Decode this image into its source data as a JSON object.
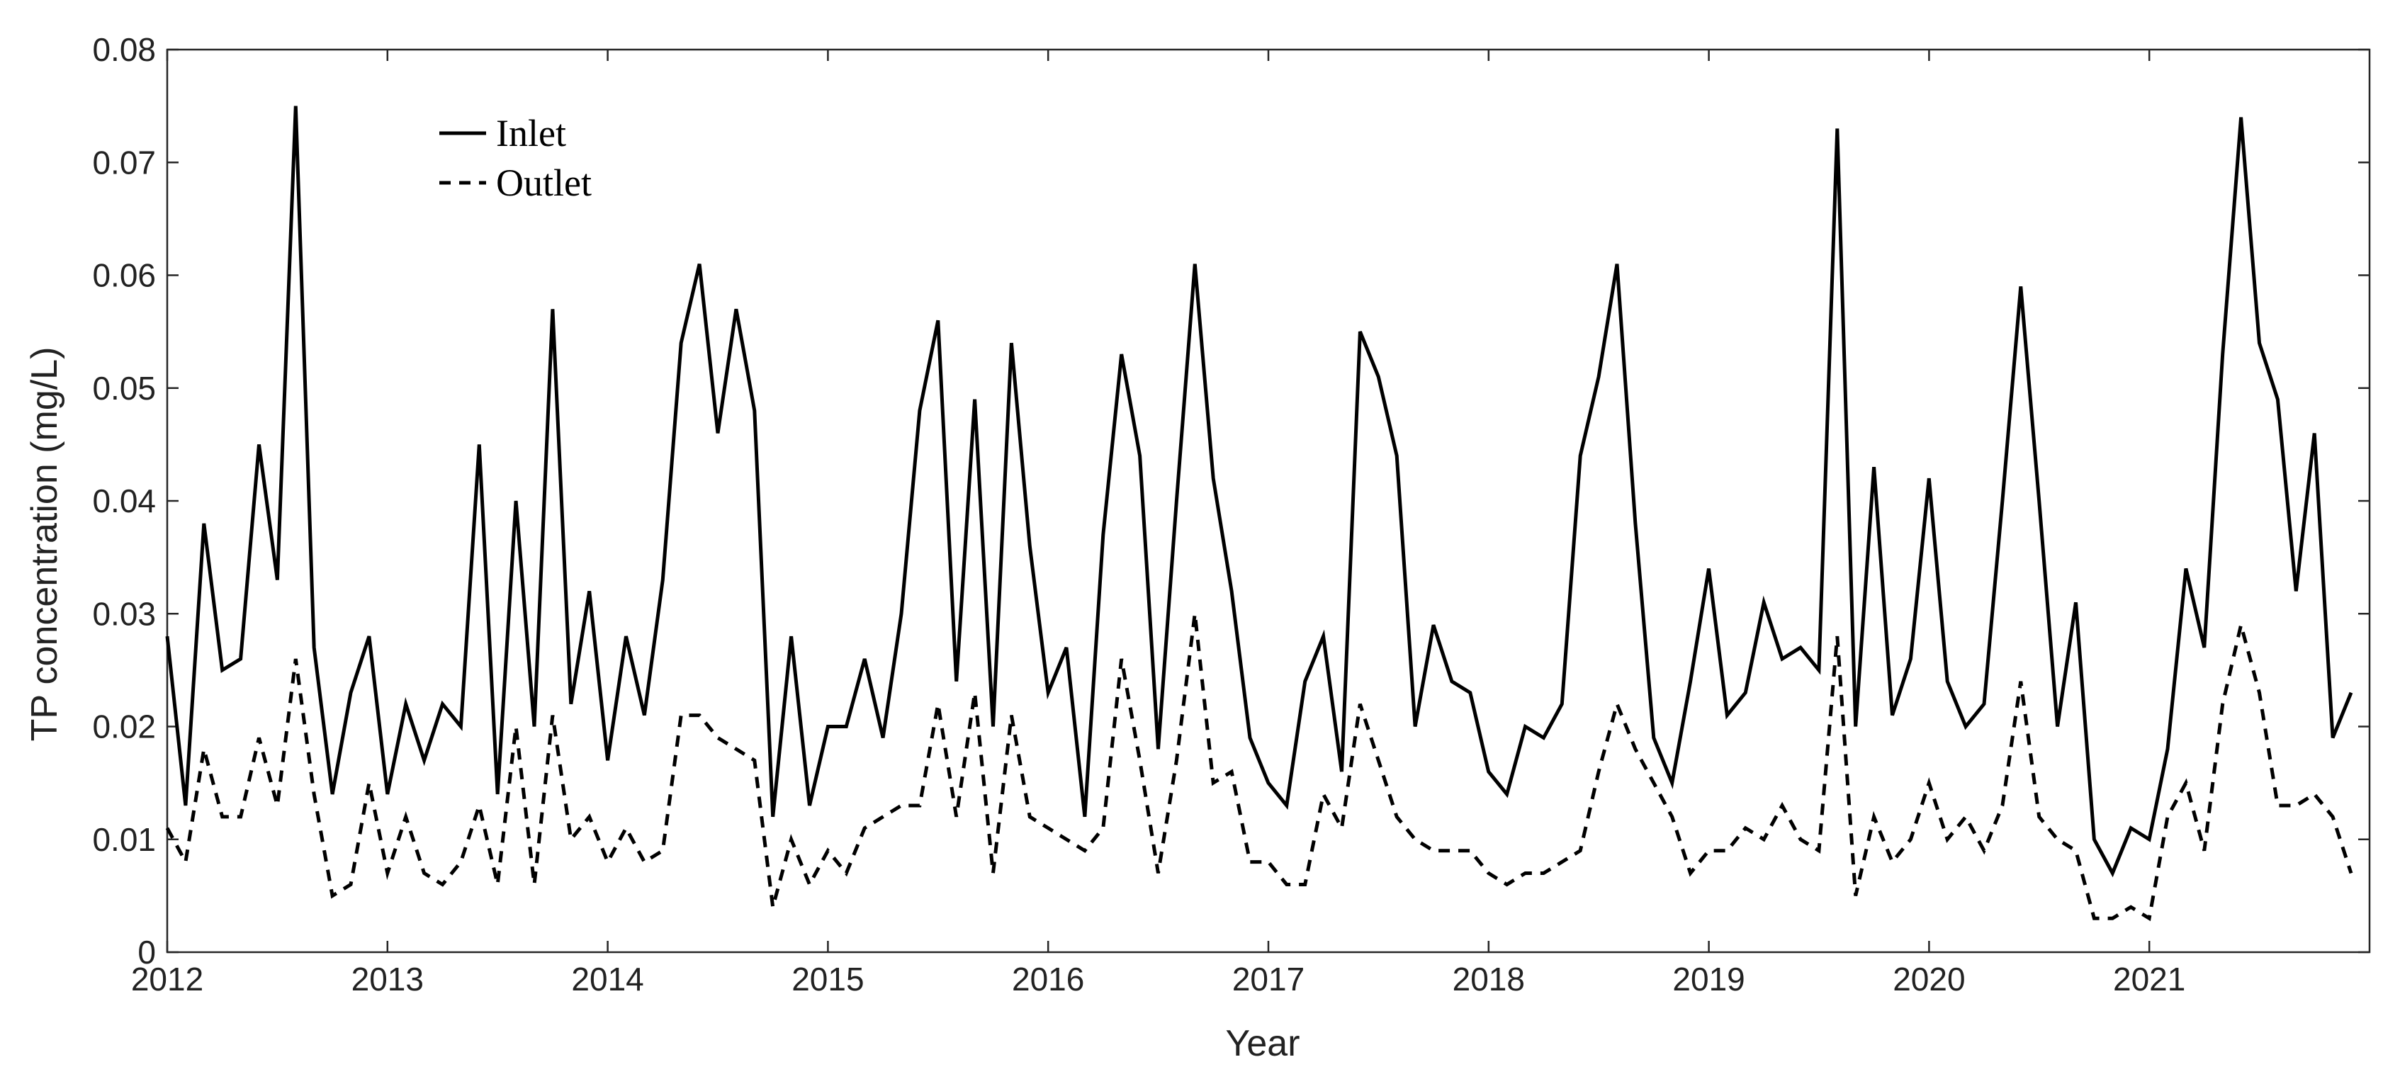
{
  "chart_data": {
    "type": "line",
    "title": "",
    "xlabel": "Year",
    "ylabel": "TP concentration (mg/L)",
    "xlim": [
      2012,
      2022
    ],
    "ylim": [
      0,
      0.08
    ],
    "grid": false,
    "legend_position": "top-left",
    "x_ticks": [
      "2012",
      "2013",
      "2014",
      "2015",
      "2016",
      "2017",
      "2018",
      "2019",
      "2020",
      "2021"
    ],
    "y_ticks": [
      "0",
      "0.01",
      "0.02",
      "0.03",
      "0.04",
      "0.05",
      "0.06",
      "0.07",
      "0.08"
    ],
    "x_step": 0.08333,
    "series": [
      {
        "name": "Inlet",
        "style": "solid",
        "color": "#000000",
        "values": [
          0.028,
          0.013,
          0.038,
          0.025,
          0.026,
          0.045,
          0.033,
          0.075,
          0.027,
          0.014,
          0.023,
          0.028,
          0.014,
          0.022,
          0.017,
          0.022,
          0.02,
          0.045,
          0.014,
          0.04,
          0.02,
          0.057,
          0.022,
          0.032,
          0.017,
          0.028,
          0.021,
          0.033,
          0.054,
          0.061,
          0.046,
          0.057,
          0.048,
          0.012,
          0.028,
          0.013,
          0.02,
          0.02,
          0.026,
          0.019,
          0.03,
          0.048,
          0.056,
          0.024,
          0.049,
          0.02,
          0.054,
          0.036,
          0.023,
          0.027,
          0.012,
          0.037,
          0.053,
          0.044,
          0.018,
          0.04,
          0.061,
          0.042,
          0.032,
          0.019,
          0.015,
          0.013,
          0.024,
          0.028,
          0.016,
          0.055,
          0.051,
          0.044,
          0.02,
          0.029,
          0.024,
          0.023,
          0.016,
          0.014,
          0.02,
          0.019,
          0.022,
          0.044,
          0.051,
          0.061,
          0.038,
          0.019,
          0.015,
          0.024,
          0.034,
          0.021,
          0.023,
          0.031,
          0.026,
          0.027,
          0.025,
          0.073,
          0.02,
          0.043,
          0.021,
          0.026,
          0.042,
          0.024,
          0.02,
          0.022,
          0.04,
          0.059,
          0.04,
          0.02,
          0.031,
          0.01,
          0.007,
          0.011,
          0.01,
          0.018,
          0.034,
          0.027,
          0.053,
          0.074,
          0.054,
          0.049,
          0.032,
          0.046,
          0.019,
          0.023
        ]
      },
      {
        "name": "Outlet",
        "style": "dashed",
        "color": "#000000",
        "values": [
          0.011,
          0.008,
          0.018,
          0.012,
          0.012,
          0.019,
          0.013,
          0.026,
          0.014,
          0.005,
          0.006,
          0.015,
          0.007,
          0.012,
          0.007,
          0.006,
          0.008,
          0.013,
          0.006,
          0.02,
          0.006,
          0.021,
          0.01,
          0.012,
          0.008,
          0.011,
          0.008,
          0.009,
          0.021,
          0.021,
          0.019,
          0.018,
          0.017,
          0.004,
          0.01,
          0.006,
          0.009,
          0.007,
          0.011,
          0.012,
          0.013,
          0.013,
          0.022,
          0.012,
          0.023,
          0.007,
          0.021,
          0.012,
          0.011,
          0.01,
          0.009,
          0.011,
          0.026,
          0.017,
          0.007,
          0.017,
          0.03,
          0.015,
          0.016,
          0.008,
          0.008,
          0.006,
          0.006,
          0.014,
          0.011,
          0.022,
          0.017,
          0.012,
          0.01,
          0.009,
          0.009,
          0.009,
          0.007,
          0.006,
          0.007,
          0.007,
          0.008,
          0.009,
          0.016,
          0.022,
          0.018,
          0.015,
          0.012,
          0.007,
          0.009,
          0.009,
          0.011,
          0.01,
          0.013,
          0.01,
          0.009,
          0.028,
          0.005,
          0.012,
          0.008,
          0.01,
          0.015,
          0.01,
          0.012,
          0.009,
          0.013,
          0.024,
          0.012,
          0.01,
          0.009,
          0.003,
          0.003,
          0.004,
          0.003,
          0.012,
          0.015,
          0.009,
          0.022,
          0.029,
          0.023,
          0.013,
          0.013,
          0.014,
          0.012,
          0.007
        ]
      }
    ]
  }
}
